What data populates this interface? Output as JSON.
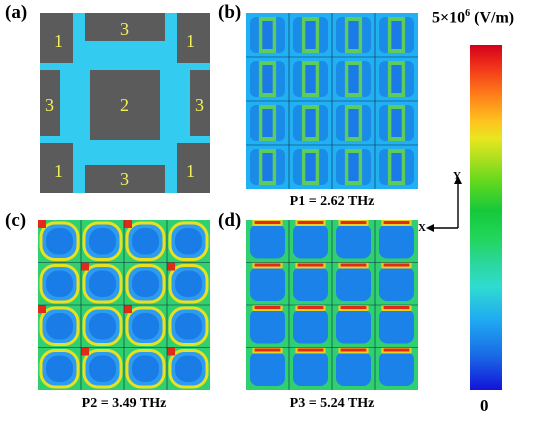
{
  "panels": {
    "a": {
      "label": "(a)",
      "regions": [
        "1",
        "3",
        "1",
        "3",
        "2",
        "3",
        "1",
        "3",
        "1"
      ]
    },
    "b": {
      "label": "(b)",
      "caption": "P1 = 2.62 THz"
    },
    "c": {
      "label": "(c)",
      "caption": "P2 = 3.49 THz"
    },
    "d": {
      "label": "(d)",
      "caption": "P3 = 5.24 THz"
    }
  },
  "colorbar": {
    "max_base": "5×10",
    "max_exp": "6",
    "max_unit": " (V/m)",
    "min_label": "0",
    "colors": [
      "#d4001a",
      "#ff7a1a",
      "#e8e61f",
      "#16c83a",
      "#2fdcd0",
      "#1a6ae6",
      "#1313d8"
    ]
  },
  "axes": {
    "y": "Y",
    "x": "X"
  },
  "colors": {
    "pad": "#5b5b5b",
    "substrate": "#33ccf0",
    "field_bg": "#1fb4ff",
    "number": "#f2f25a"
  }
}
